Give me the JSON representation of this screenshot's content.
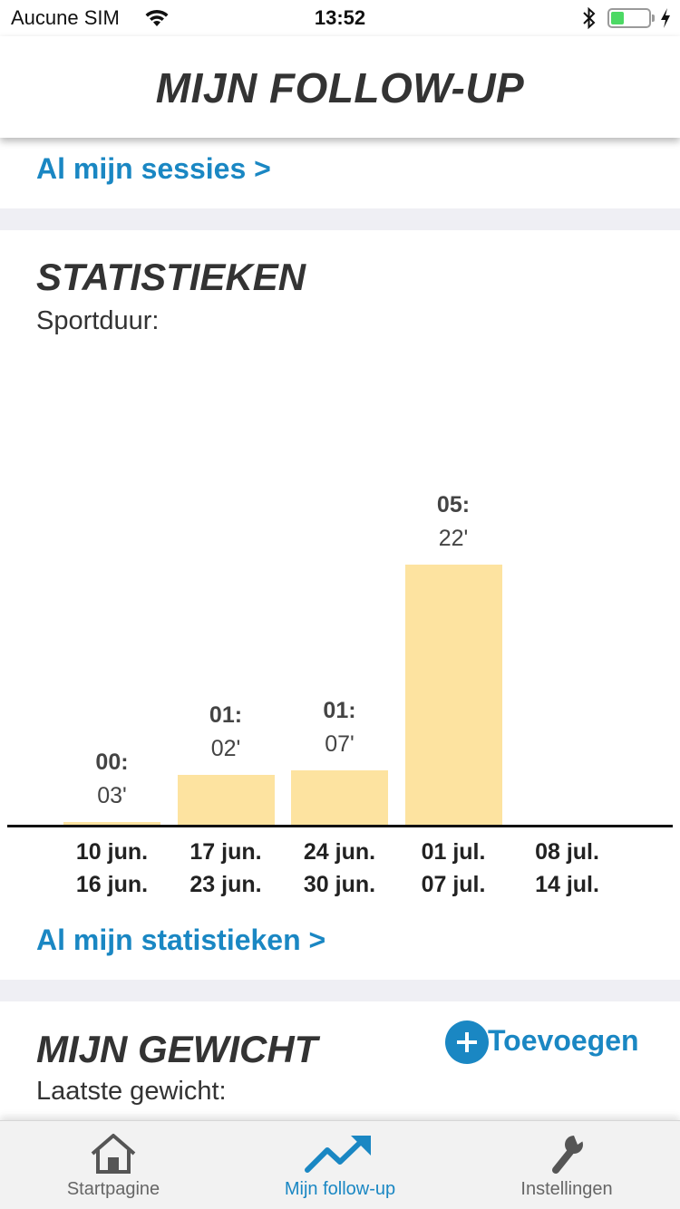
{
  "status_bar": {
    "carrier": "Aucune SIM",
    "time": "13:52",
    "battery_level": 0.35,
    "battery_color": "#4cd964"
  },
  "header": {
    "title": "MIJN FOLLOW-UP"
  },
  "sessions": {
    "link": "Al mijn sessies >"
  },
  "statistics": {
    "title": "STATISTIEKEN",
    "subtitle": "Sportduur:",
    "link": "Al mijn statistieken >"
  },
  "chart_data": {
    "type": "bar",
    "title": "Sportduur:",
    "categories": [
      [
        "10 jun.",
        "16 jun."
      ],
      [
        "17 jun.",
        "23 jun."
      ],
      [
        "24 jun.",
        "30 jun."
      ],
      [
        "01 jul.",
        "07 jul."
      ],
      [
        "08 jul.",
        "14 jul."
      ]
    ],
    "values_minutes": [
      3,
      62,
      67,
      322,
      0
    ],
    "data_labels": [
      [
        "00:",
        "03'"
      ],
      [
        "01:",
        "02'"
      ],
      [
        "01:",
        "07'"
      ],
      [
        "05:",
        "22'"
      ],
      null
    ],
    "bar_color": "#fde3a0",
    "xlabel": "",
    "ylabel": "",
    "grid": false
  },
  "weight": {
    "title": "MIJN GEWICHT",
    "subtitle": "Laatste gewicht:",
    "add_label": "Toevoegen",
    "add_icon": "plus-circle-icon"
  },
  "tabs": [
    {
      "label": "Startpagine",
      "icon": "home-icon",
      "active": false
    },
    {
      "label": "Mijn follow-up",
      "icon": "trending-up-icon",
      "active": true
    },
    {
      "label": "Instellingen",
      "icon": "wrench-icon",
      "active": false
    }
  ],
  "colors": {
    "accent": "#1a87c3",
    "separator": "#efeff4",
    "text": "#333333"
  }
}
